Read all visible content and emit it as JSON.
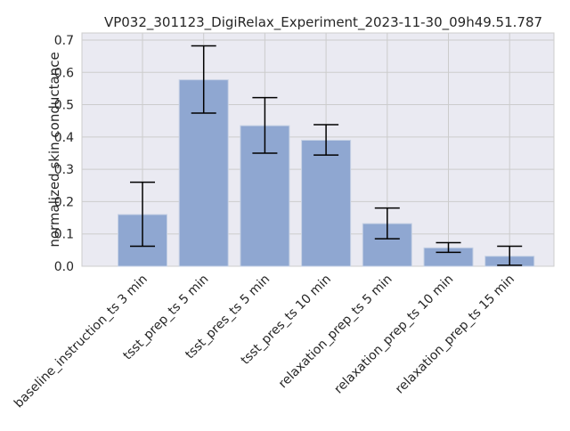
{
  "chart_data": {
    "type": "bar",
    "title": "VP032_301123_DigiRelax_Experiment_2023-11-30_09h49.51.787",
    "xlabel": "",
    "ylabel": "normalized skin conductance",
    "categories": [
      "baseline_instruction_ts 3 min",
      "tsst_prep_ts 5 min",
      "tsst_pres_ts 5 min",
      "tsst_pres_ts 10 min",
      "relaxation_prep_ts 5 min",
      "relaxation_prep_ts 10 min",
      "relaxation_prep_ts 15 min"
    ],
    "values": [
      0.16,
      0.577,
      0.435,
      0.39,
      0.132,
      0.057,
      0.031
    ],
    "error_low": [
      0.062,
      0.474,
      0.35,
      0.344,
      0.085,
      0.043,
      0.003
    ],
    "error_high": [
      0.26,
      0.682,
      0.522,
      0.438,
      0.18,
      0.073,
      0.062
    ],
    "ylim": [
      0,
      0.7
    ],
    "yticks": [
      "0.0",
      "0.1",
      "0.2",
      "0.3",
      "0.4",
      "0.5",
      "0.6",
      "0.7"
    ],
    "grid": true,
    "colors": {
      "bar": "#8fa7d1",
      "bar_edge": "#c6d1e4",
      "axes_bg": "#eaeaf2",
      "grid": "#cccccc",
      "error": "#000000",
      "spine": "#cccccc"
    }
  }
}
